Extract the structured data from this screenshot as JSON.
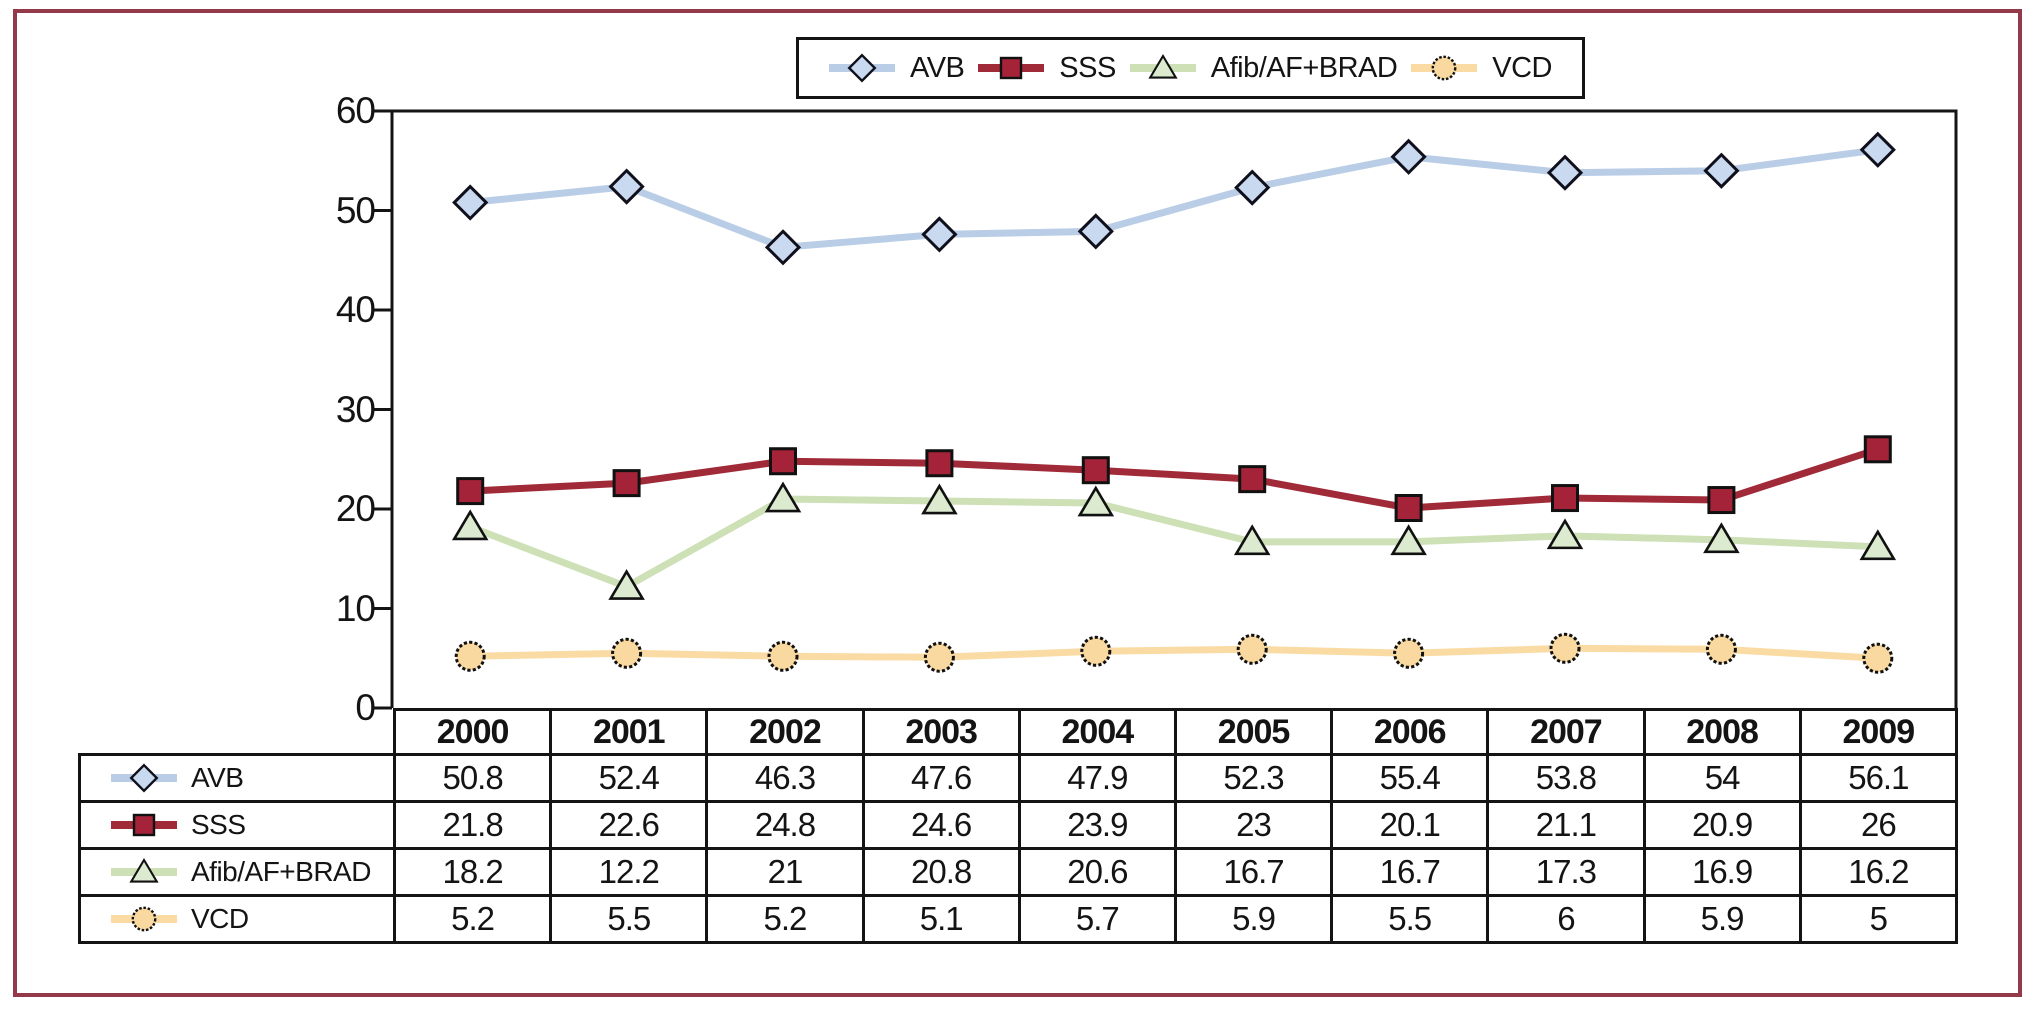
{
  "colors": {
    "page_border": "#94394a",
    "axis": "#141414",
    "text": "#141414"
  },
  "chart_data": {
    "type": "line",
    "title": "",
    "xlabel": "",
    "ylabel": "",
    "categories": [
      "2000",
      "2001",
      "2002",
      "2003",
      "2004",
      "2005",
      "2006",
      "2007",
      "2008",
      "2009"
    ],
    "series": [
      {
        "name": "AVB",
        "marker": "diamond",
        "line_color": "#b9cde6",
        "marker_fill": "#c9daf0",
        "values": [
          50.8,
          52.4,
          46.3,
          47.6,
          47.9,
          52.3,
          55.4,
          53.8,
          54,
          56.1
        ]
      },
      {
        "name": "SSS",
        "marker": "square",
        "line_color": "#a02a38",
        "marker_fill": "#a42339",
        "values": [
          21.8,
          22.6,
          24.8,
          24.6,
          23.9,
          23,
          20.1,
          21.1,
          20.9,
          26
        ]
      },
      {
        "name": "Afib/AF+BRAD",
        "marker": "triangle",
        "line_color": "#cde0b6",
        "marker_fill": "#dcead0",
        "values": [
          18.2,
          12.2,
          21,
          20.8,
          20.6,
          16.7,
          16.7,
          17.3,
          16.9,
          16.2
        ]
      },
      {
        "name": "VCD",
        "marker": "circle",
        "line_color": "#fbdba4",
        "marker_fill": "#fad9a1",
        "values": [
          5.2,
          5.5,
          5.2,
          5.1,
          5.7,
          5.9,
          5.5,
          6,
          5.9,
          5
        ]
      }
    ],
    "ylim": [
      0,
      60
    ],
    "yticks": [
      60,
      50,
      40,
      30,
      20,
      10,
      0
    ],
    "grid": false,
    "legend_position": "top"
  }
}
